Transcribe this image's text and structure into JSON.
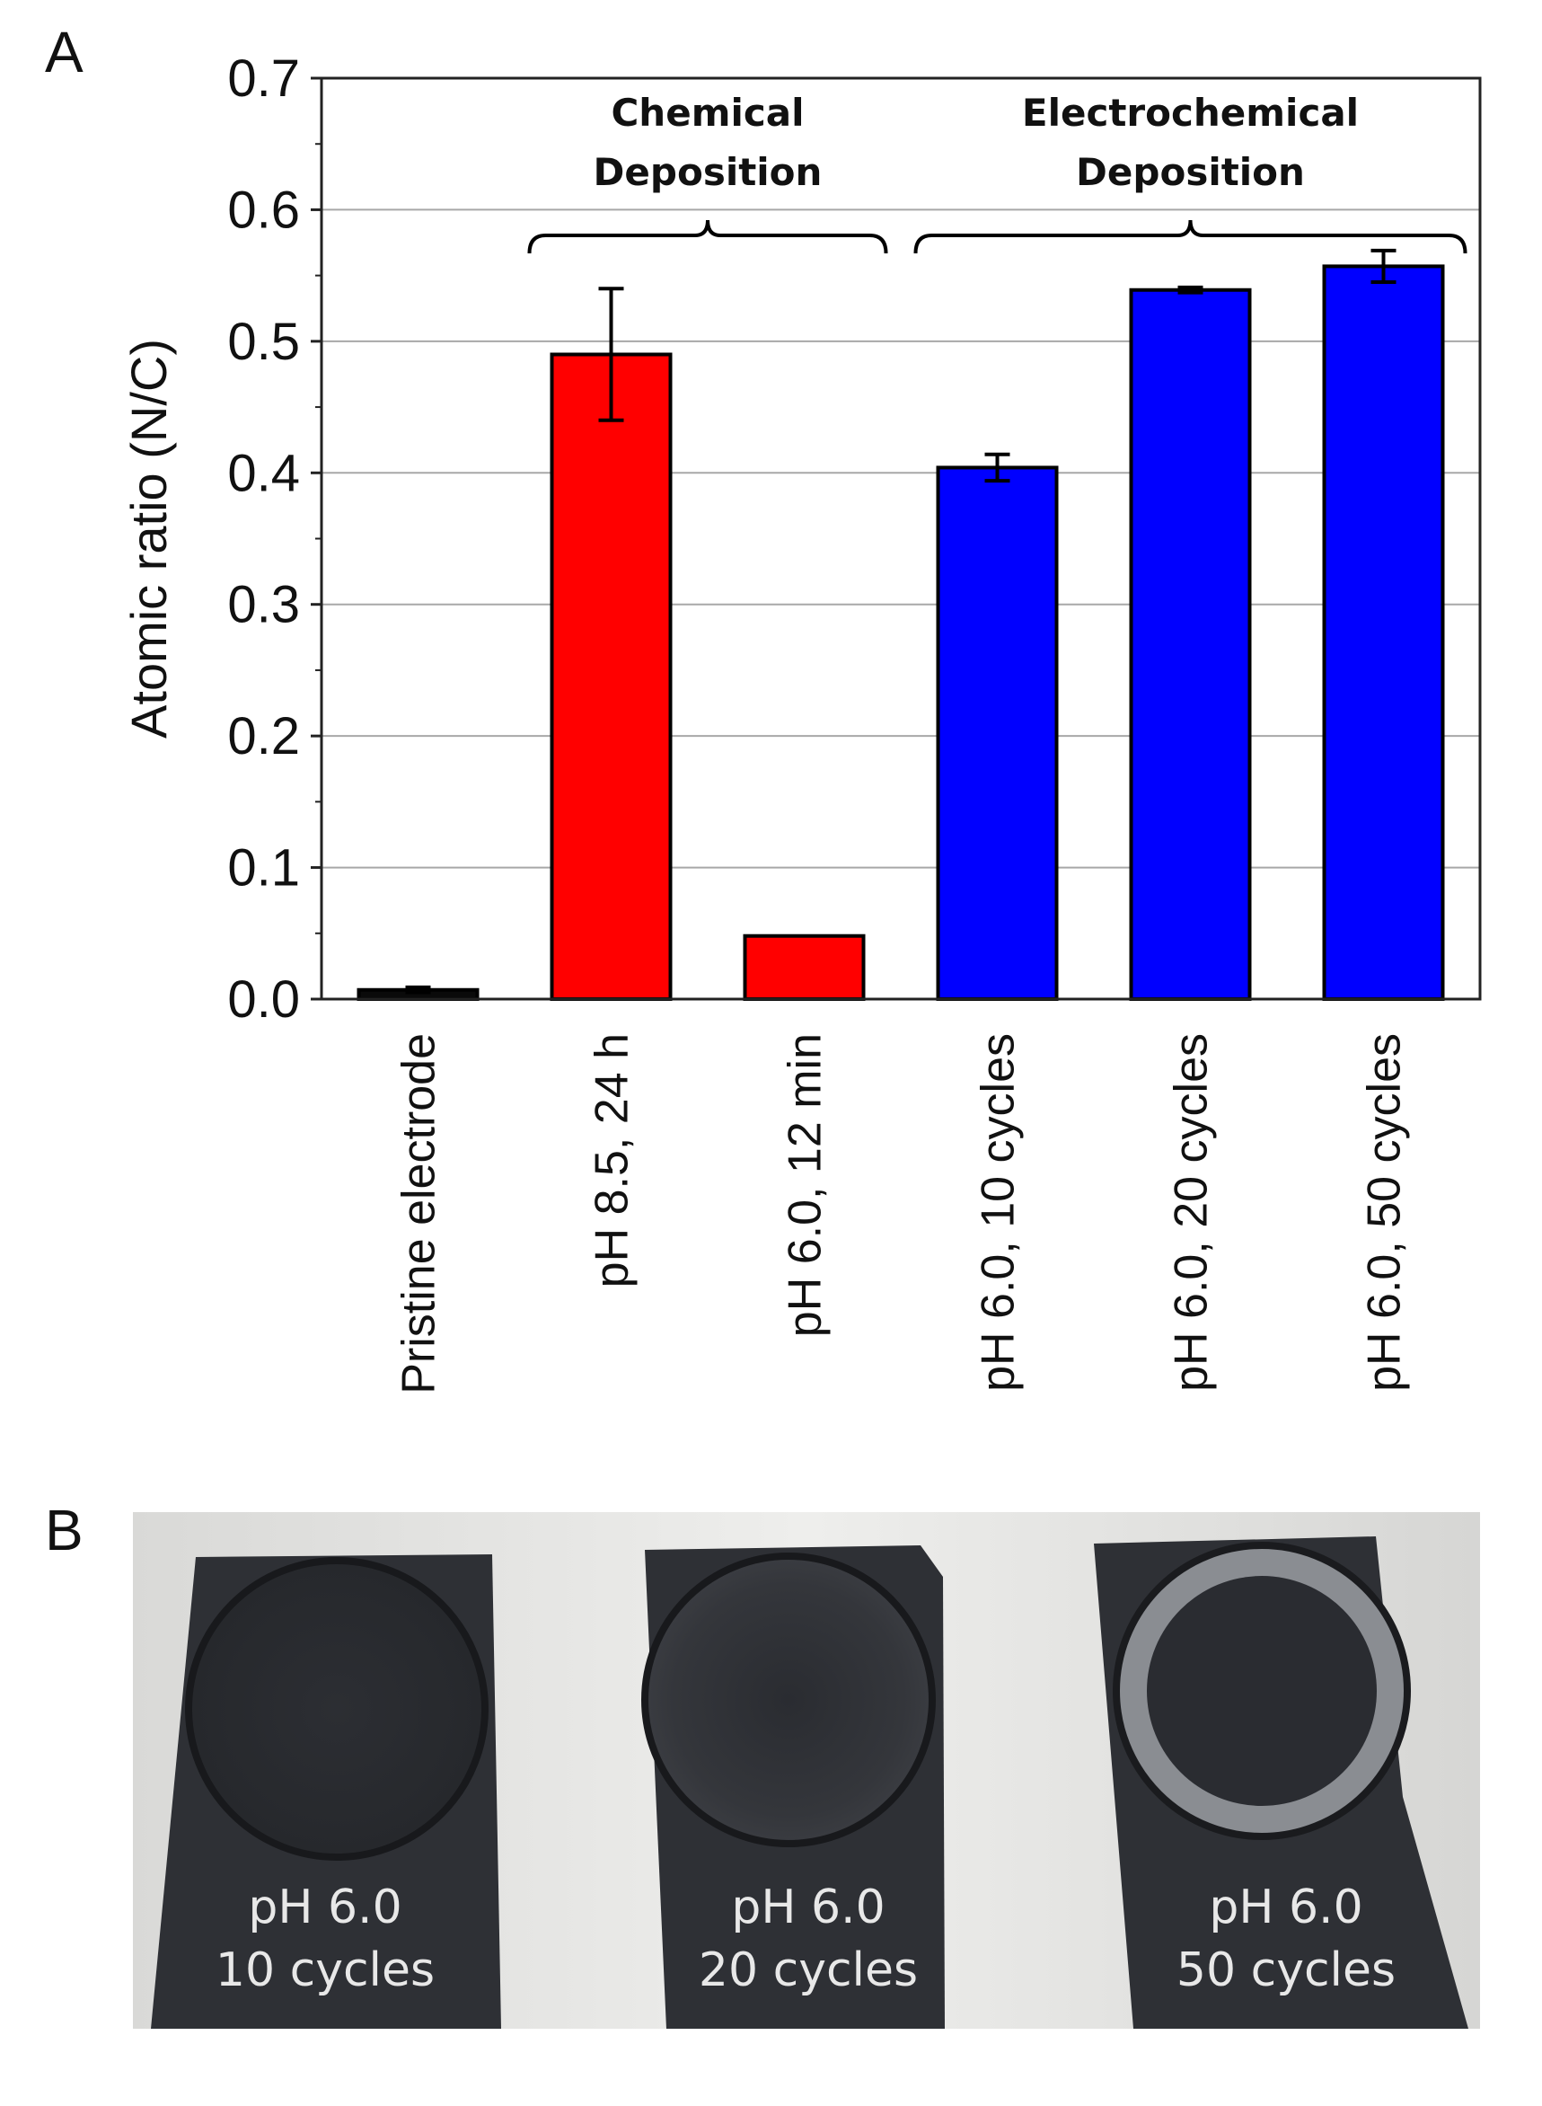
{
  "panel_labels": {
    "a": "A",
    "b": "B"
  },
  "chart_data": {
    "type": "bar",
    "ylabel": "Atomic ratio (N/C)",
    "ylim": [
      0,
      0.7
    ],
    "yticks": [
      "0.0",
      "0.1",
      "0.2",
      "0.3",
      "0.4",
      "0.5",
      "0.6",
      "0.7"
    ],
    "grid": true,
    "categories": [
      "Pristine electrode",
      "pH 8.5, 24 h",
      "pH 6.0, 12 min",
      "pH 6.0, 10 cycles",
      "pH 6.0, 20 cycles",
      "pH 6.0, 50 cycles"
    ],
    "values": [
      0.007,
      0.49,
      0.048,
      0.404,
      0.539,
      0.557
    ],
    "errors": [
      0.002,
      0.05,
      0.0,
      0.01,
      0.002,
      0.012
    ],
    "bar_colors": [
      "#0a0a0a",
      "#ff0000",
      "#ff0000",
      "#0000ff",
      "#0000ff",
      "#0000ff"
    ],
    "groups": [
      {
        "label_lines": [
          "Chemical",
          "Deposition"
        ],
        "from": 1,
        "to": 2
      },
      {
        "label_lines": [
          "Electrochemical",
          "Deposition"
        ],
        "from": 3,
        "to": 5
      }
    ]
  },
  "photo": {
    "electrodes": [
      {
        "line1": "pH 6.0",
        "line2": "10 cycles"
      },
      {
        "line1": "pH 6.0",
        "line2": "20 cycles"
      },
      {
        "line1": "pH 6.0",
        "line2": "50 cycles"
      }
    ]
  }
}
